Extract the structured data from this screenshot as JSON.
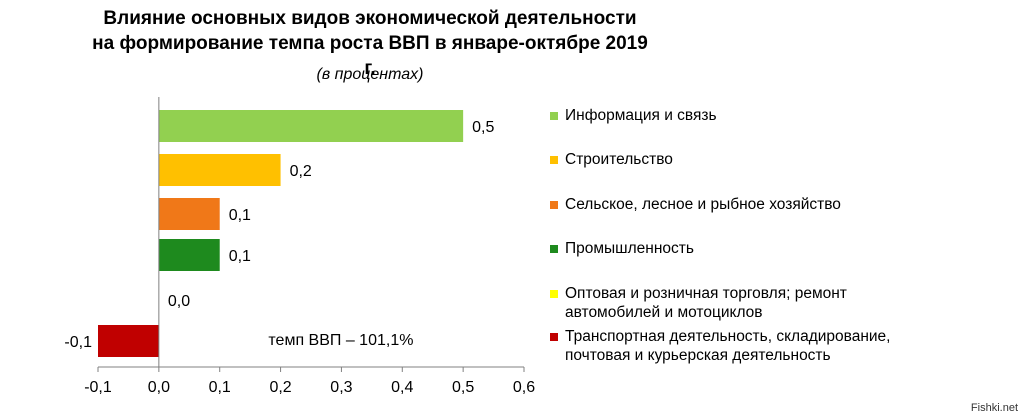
{
  "title_line1": "Влияние основных видов экономической деятельности",
  "title_line2": "на формирование темпа роста ВВП в январе-октябре 2019 г.",
  "subtitle": "(в процентах)",
  "annotation": "темп ВВП – 101,1%",
  "watermark": "Fishki.net",
  "chart_data": {
    "type": "bar",
    "orientation": "horizontal",
    "categories": [
      "Информация и связь",
      "Строительство",
      "Сельское, лесное и рыбное хозяйство",
      "Промышленность",
      "Оптовая и розничная торговля; ремонт автомобилей и мотоциклов",
      "Транспортная  деятельность, складирование, почтовая и курьерская деятельность"
    ],
    "values": [
      0.5,
      0.2,
      0.1,
      0.1,
      0.0,
      -0.1
    ],
    "value_labels": [
      "0,5",
      "0,2",
      "0,1",
      "0,1",
      "0,0",
      "-0,1"
    ],
    "colors": [
      "#92d050",
      "#ffc000",
      "#f07818",
      "#1e8a1e",
      "#ffff00",
      "#c00000"
    ],
    "xlim": [
      -0.1,
      0.6
    ],
    "xticks": [
      "-0,1",
      "0,0",
      "0,1",
      "0,2",
      "0,3",
      "0,4",
      "0,5",
      "0,6"
    ],
    "tick_values": [
      -0.1,
      0,
      0.1,
      0.2,
      0.3,
      0.4,
      0.5,
      0.6
    ],
    "grid": false,
    "legend_position": "right"
  },
  "legend": [
    {
      "label": "Информация и связь",
      "color": "#92d050"
    },
    {
      "label": "Строительство",
      "color": "#ffc000"
    },
    {
      "label": "Сельское, лесное и рыбное хозяйство",
      "color": "#f07818"
    },
    {
      "label": "Промышленность",
      "color": "#1e8a1e"
    },
    {
      "label": "Оптовая и розничная торговля; ремонт",
      "label2": "автомобилей и мотоциклов",
      "color": "#ffff00"
    },
    {
      "label": "Транспортная  деятельность, складирование,",
      "label2": "почтовая и курьерская деятельность",
      "color": "#c00000"
    }
  ]
}
